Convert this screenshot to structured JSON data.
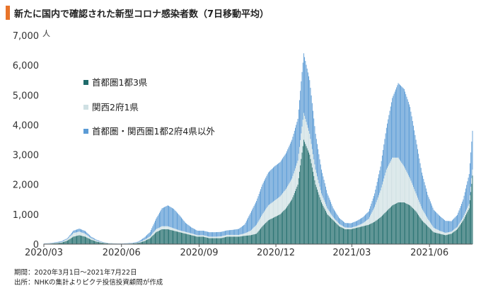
{
  "title": "新たに国内で確認された新型コロナ感染者数（7日移動平均）",
  "footnotes": [
    "期間：2020年3月1日～2021年7月22日",
    "出所：NHKの集計よりピクテ投信投資顧問が作成"
  ],
  "chart_data": {
    "type": "bar",
    "stacked": true,
    "x_label_ticks": [
      "2020/03",
      "2020/06",
      "2020/09",
      "2020/12",
      "2021/03",
      "2021/06"
    ],
    "y_ticks": [
      "0",
      "1,000",
      "2,000",
      "3,000",
      "4,000",
      "5,000",
      "6,000",
      "7,000"
    ],
    "y_unit": "人",
    "ylim": [
      0,
      7000
    ],
    "legend_position": "upper-middle",
    "series": [
      {
        "name": "首都圏1都3県",
        "color": "#1f6b6b"
      },
      {
        "name": "関西2府1県",
        "color": "#cfe0e3"
      },
      {
        "name": "首都圏・関西圏1都2府4県以外",
        "color": "#5b9bd5"
      }
    ],
    "weekly_x": [
      "2020/03/01",
      "2020/03/08",
      "2020/03/15",
      "2020/03/22",
      "2020/03/29",
      "2020/04/05",
      "2020/04/12",
      "2020/04/19",
      "2020/04/26",
      "2020/05/03",
      "2020/05/10",
      "2020/05/17",
      "2020/05/24",
      "2020/05/31",
      "2020/06/07",
      "2020/06/14",
      "2020/06/21",
      "2020/06/28",
      "2020/07/05",
      "2020/07/12",
      "2020/07/19",
      "2020/07/26",
      "2020/08/02",
      "2020/08/09",
      "2020/08/16",
      "2020/08/23",
      "2020/08/30",
      "2020/09/06",
      "2020/09/13",
      "2020/09/20",
      "2020/09/27",
      "2020/10/04",
      "2020/10/11",
      "2020/10/18",
      "2020/10/25",
      "2020/11/01",
      "2020/11/08",
      "2020/11/15",
      "2020/11/22",
      "2020/11/29",
      "2020/12/06",
      "2020/12/13",
      "2020/12/20",
      "2020/12/27",
      "2021/01/03",
      "2021/01/10",
      "2021/01/17",
      "2021/01/24",
      "2021/01/31",
      "2021/02/07",
      "2021/02/14",
      "2021/02/21",
      "2021/02/28",
      "2021/03/07",
      "2021/03/14",
      "2021/03/21",
      "2021/03/28",
      "2021/04/04",
      "2021/04/11",
      "2021/04/18",
      "2021/04/25",
      "2021/05/02",
      "2021/05/09",
      "2021/05/16",
      "2021/05/23",
      "2021/05/30",
      "2021/06/06",
      "2021/06/13",
      "2021/06/20",
      "2021/06/27",
      "2021/07/04",
      "2021/07/11",
      "2021/07/18",
      "2021/07/22"
    ],
    "weekly_shuto": [
      10,
      15,
      30,
      50,
      120,
      250,
      300,
      250,
      150,
      80,
      40,
      20,
      15,
      10,
      15,
      20,
      40,
      100,
      200,
      400,
      500,
      500,
      450,
      400,
      350,
      300,
      250,
      250,
      200,
      200,
      200,
      250,
      250,
      250,
      280,
      300,
      350,
      600,
      800,
      900,
      1000,
      1200,
      1500,
      2000,
      3500,
      3000,
      2000,
      1400,
      1000,
      800,
      600,
      500,
      500,
      550,
      600,
      650,
      750,
      900,
      1100,
      1300,
      1400,
      1400,
      1300,
      1100,
      800,
      600,
      400,
      350,
      300,
      350,
      500,
      800,
      1200,
      2300
    ],
    "weekly_kansai": [
      5,
      10,
      15,
      20,
      50,
      120,
      120,
      100,
      50,
      30,
      15,
      8,
      5,
      5,
      5,
      8,
      15,
      40,
      60,
      100,
      100,
      100,
      80,
      60,
      60,
      60,
      50,
      50,
      50,
      50,
      60,
      60,
      60,
      60,
      80,
      150,
      300,
      400,
      500,
      550,
      600,
      650,
      700,
      800,
      900,
      700,
      500,
      300,
      200,
      100,
      80,
      60,
      50,
      60,
      100,
      200,
      500,
      900,
      1400,
      1600,
      1500,
      1200,
      900,
      600,
      400,
      250,
      150,
      100,
      80,
      70,
      80,
      100,
      150,
      200
    ],
    "weekly_other": [
      5,
      10,
      20,
      30,
      30,
      80,
      100,
      90,
      50,
      30,
      15,
      7,
      5,
      5,
      10,
      15,
      30,
      80,
      150,
      350,
      600,
      700,
      650,
      500,
      300,
      200,
      150,
      150,
      150,
      150,
      150,
      150,
      170,
      200,
      300,
      600,
      800,
      1000,
      1100,
      1150,
      1150,
      1200,
      1300,
      1400,
      2000,
      1800,
      1200,
      800,
      500,
      300,
      200,
      150,
      150,
      170,
      200,
      250,
      450,
      800,
      1400,
      2000,
      2500,
      2600,
      2400,
      1800,
      1200,
      800,
      600,
      500,
      400,
      350,
      400,
      600,
      1000,
      1300
    ]
  }
}
